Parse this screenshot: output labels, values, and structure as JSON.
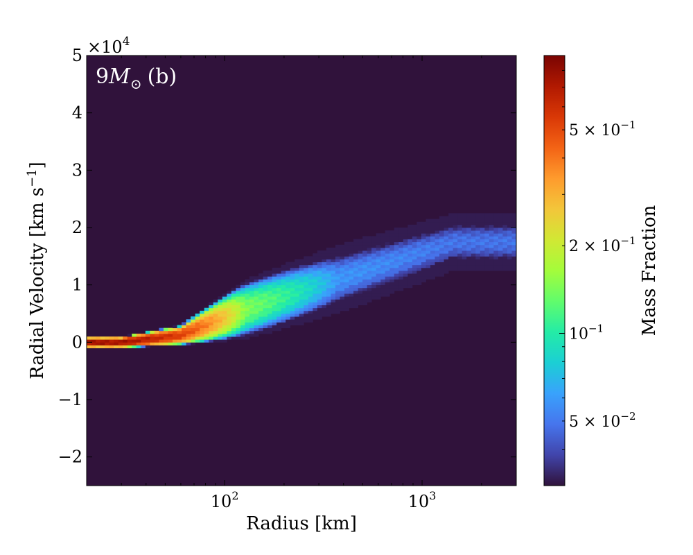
{
  "chart_data": {
    "type": "heatmap",
    "panel_label_prefix": "9",
    "panel_label_symbol": "M",
    "panel_label_subscript": "⊙",
    "panel_label_suffix": "(b)",
    "xlabel": "Radius [km]",
    "ylabel": "Radial Velocity [km s",
    "ylabel_sup": "−1",
    "ylabel_close": "]",
    "x_scale": "log",
    "xlim": [
      20,
      3000
    ],
    "ylim": [
      -25000,
      50000
    ],
    "y_offset_base": "×10",
    "y_offset_exp": "4",
    "x_ticks": [
      {
        "value": 100,
        "base": "10",
        "exp": "2"
      },
      {
        "value": 1000,
        "base": "10",
        "exp": "3"
      }
    ],
    "y_ticks": [
      {
        "value": -20000,
        "label": "−2"
      },
      {
        "value": -10000,
        "label": "−1"
      },
      {
        "value": 0,
        "label": "0"
      },
      {
        "value": 10000,
        "label": "1"
      },
      {
        "value": 20000,
        "label": "2"
      },
      {
        "value": 30000,
        "label": "3"
      },
      {
        "value": 40000,
        "label": "4"
      },
      {
        "value": 50000,
        "label": "5"
      }
    ],
    "background_color": "#30123b",
    "colorbar": {
      "label": "Mass Fraction",
      "scale": "log",
      "range": [
        0.03,
        0.9
      ],
      "ticks": [
        {
          "value": 0.5,
          "mant": "5 × ",
          "base": "10",
          "exp": "−1"
        },
        {
          "value": 0.2,
          "mant": "2 × ",
          "base": "10",
          "exp": "−1"
        },
        {
          "value": 0.1,
          "mant": "",
          "base": "10",
          "exp": "−1"
        },
        {
          "value": 0.05,
          "mant": "5 × ",
          "base": "10",
          "exp": "−2"
        }
      ],
      "colors": [
        "#30123b",
        "#4145ab",
        "#4675ed",
        "#39a2fc",
        "#1bcfd4",
        "#24eca6",
        "#61fc6c",
        "#a4fc3b",
        "#d1e834",
        "#f3c63a",
        "#fe9b2d",
        "#f36315",
        "#d93806",
        "#b11901",
        "#7a0402"
      ]
    },
    "bands": [
      {
        "x": [
          20,
          45
        ],
        "v_lo": -1000,
        "v_hi": 1000,
        "peak": 0.8
      },
      {
        "x": [
          45,
          80
        ],
        "v_lo": -500,
        "v_hi": 3000,
        "peak": 0.55
      },
      {
        "x": [
          80,
          200
        ],
        "v_lo": 500,
        "v_hi": 11000,
        "peak": 0.15
      },
      {
        "x": [
          200,
          700
        ],
        "v_lo": 5000,
        "v_hi": 17000,
        "peak": 0.06
      },
      {
        "x": [
          700,
          3000
        ],
        "v_lo": 12500,
        "v_hi": 22500,
        "peak": 0.05
      }
    ]
  }
}
